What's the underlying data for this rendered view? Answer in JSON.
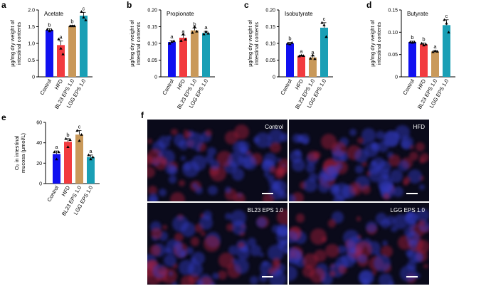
{
  "chart_data": [
    {
      "panel": "a",
      "type": "bar",
      "title": "Acetate",
      "ylabel": [
        "μg/mg dry weight of",
        "intestinal contents"
      ],
      "ylim": [
        0,
        2.0
      ],
      "yticks": [
        0,
        0.5,
        1.0,
        1.5,
        2.0
      ],
      "yticklabels": [
        "0",
        "0.5",
        "1.0",
        "1.5",
        "2.0"
      ],
      "categories": [
        "Control",
        "HFD",
        "BL23 EPS 1.0",
        "LGG EPS 1.0"
      ],
      "values": [
        1.4,
        0.95,
        1.52,
        1.83
      ],
      "errors": [
        0.04,
        0.12,
        0.02,
        0.1
      ],
      "letters": [
        "b",
        "a",
        "b",
        "c"
      ],
      "points": [
        [
          1.42,
          1.37,
          1.4
        ],
        [
          1.13,
          0.85,
          0.68
        ],
        [
          1.52,
          1.52,
          1.52
        ],
        [
          1.95,
          1.78,
          1.7
        ]
      ]
    },
    {
      "panel": "b",
      "type": "bar",
      "title": "Propionate",
      "ylabel": [
        "μg/mg dry weight of",
        "intestinal contents"
      ],
      "ylim": [
        0,
        0.2
      ],
      "yticks": [
        0,
        0.05,
        0.1,
        0.15,
        0.2
      ],
      "yticklabels": [
        "0",
        "0.05",
        "0.10",
        "0.15",
        "0.20"
      ],
      "categories": [
        "Control",
        "HFD",
        "BL23 EPS 1.0",
        "LGG EPS 1.0"
      ],
      "values": [
        0.104,
        0.117,
        0.139,
        0.131
      ],
      "errors": [
        0.004,
        0.008,
        0.007,
        0.005
      ],
      "letters": [
        "a",
        "a",
        "b",
        "a"
      ],
      "points": [
        [
          0.1,
          0.105,
          0.107
        ],
        [
          0.108,
          0.128,
          0.112
        ],
        [
          0.132,
          0.15,
          0.136
        ],
        [
          0.128,
          0.135,
          0.13
        ]
      ]
    },
    {
      "panel": "c",
      "type": "bar",
      "title": "Isobutyrate",
      "ylabel": [
        "μg/mg dry weight of",
        "intestinal contents"
      ],
      "ylim": [
        0,
        0.2
      ],
      "yticks": [
        0,
        0.05,
        0.1,
        0.15,
        0.2
      ],
      "yticklabels": [
        "0",
        "0.05",
        "0.10",
        "0.15",
        "0.20"
      ],
      "categories": [
        "Control",
        "HFD",
        "BL23 EPS 1.0",
        "LGG EPS 1.0"
      ],
      "values": [
        0.1,
        0.063,
        0.058,
        0.147
      ],
      "errors": [
        0.003,
        0.002,
        0.004,
        0.015
      ],
      "letters": [
        "b",
        "a",
        "a",
        "c"
      ],
      "points": [
        [
          0.1,
          0.098,
          0.102
        ],
        [
          0.062,
          0.064,
          0.063
        ],
        [
          0.055,
          0.065,
          0.054
        ],
        [
          0.162,
          0.155,
          0.12
        ]
      ]
    },
    {
      "panel": "d",
      "type": "bar",
      "title": "Butyrate",
      "ylabel": [
        "μg/mg dry weight of",
        "intestinal contents"
      ],
      "ylim": [
        0,
        0.15
      ],
      "yticks": [
        0,
        0.05,
        0.1,
        0.15
      ],
      "yticklabels": [
        "0",
        "0.05",
        "0.10",
        "0.15"
      ],
      "categories": [
        "Control",
        "HFD",
        "BL23 EPS 1.0",
        "LGG EPS 1.0"
      ],
      "values": [
        0.078,
        0.073,
        0.057,
        0.116
      ],
      "errors": [
        0.002,
        0.003,
        0.002,
        0.012
      ],
      "letters": [
        "b",
        "b",
        "a",
        "c"
      ],
      "points": [
        [
          0.078,
          0.077,
          0.078
        ],
        [
          0.075,
          0.071,
          0.073
        ],
        [
          0.056,
          0.058,
          0.057
        ],
        [
          0.128,
          0.12,
          0.1
        ]
      ]
    },
    {
      "panel": "e",
      "type": "bar",
      "title": "",
      "ylabel": [
        "O₂ in intestinal",
        "mucosa (μmol/L)"
      ],
      "ylim": [
        0,
        60
      ],
      "yticks": [
        0,
        20,
        40,
        60
      ],
      "yticklabels": [
        "0",
        "20",
        "40",
        "60"
      ],
      "categories": [
        "Control",
        "HFD",
        "BL23 EPS 1.0",
        "LGG EPS 1.0"
      ],
      "values": [
        29,
        41,
        48,
        26
      ],
      "errors": [
        3,
        3,
        4,
        2
      ],
      "letters": [
        "a",
        "b",
        "c",
        "a"
      ],
      "points": [
        [
          31,
          24,
          31
        ],
        [
          44,
          36,
          43
        ],
        [
          52,
          42,
          48
        ],
        [
          28,
          24,
          26
        ]
      ]
    }
  ],
  "colors": [
    "#1010f0",
    "#f23b3f",
    "#c9995a",
    "#1a9fb5"
  ],
  "panel_letters": [
    "a",
    "b",
    "c",
    "d",
    "e",
    "f"
  ],
  "image_panels": [
    {
      "label": "Control"
    },
    {
      "label": "HFD"
    },
    {
      "label": "BL23 EPS 1.0"
    },
    {
      "label": "LGG EPS 1.0"
    }
  ]
}
